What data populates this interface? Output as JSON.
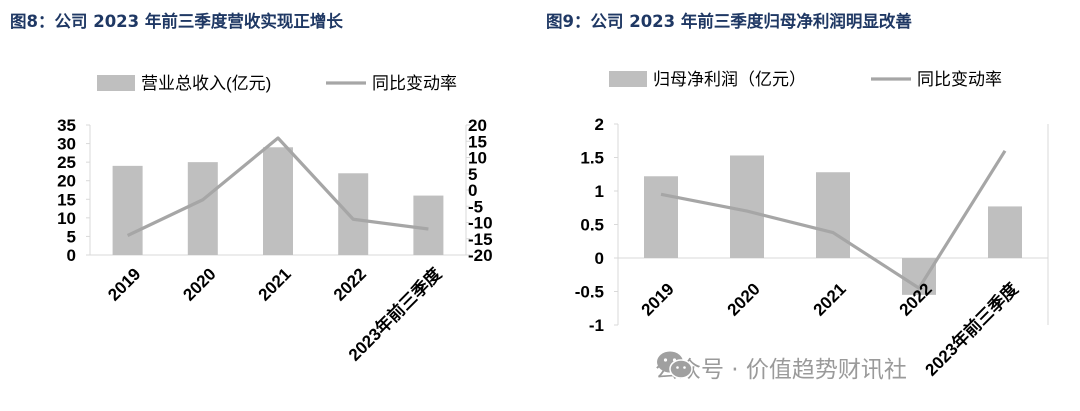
{
  "titles": {
    "left": "图8：公司 2023 年前三季度营收实现正增长",
    "right": "图9：公司 2023 年前三季度归母净利润明显改善"
  },
  "watermark": {
    "text": "公众号 · 价值趋势财讯社",
    "icon": "wechat-icon"
  },
  "colors": {
    "title": "#1f3864",
    "bar": "#bfbfbf",
    "line": "#a6a6a6",
    "axis": "#d9d9d9",
    "text": "#000000"
  },
  "chart_data": [
    {
      "type": "bar",
      "categories": [
        "2019",
        "2020",
        "2021",
        "2022",
        "2023年前三季度"
      ],
      "series": [
        {
          "name": "营业总收入(亿元)",
          "type": "bar",
          "axis": "left",
          "values": [
            24,
            25,
            29,
            22,
            16
          ]
        },
        {
          "name": "同比变动率",
          "type": "line",
          "axis": "right",
          "values": [
            -14,
            -3,
            16,
            -9,
            -12
          ]
        }
      ],
      "ylim_left": [
        0,
        35
      ],
      "yticks_left": [
        "35",
        "30",
        "25",
        "20",
        "15",
        "10",
        "5",
        "0"
      ],
      "ylim_right": [
        -20,
        20
      ],
      "yticks_right": [
        "20",
        "15",
        "10",
        "5",
        "0",
        "-5",
        "-10",
        "-15",
        "-20"
      ],
      "legend_position": "top",
      "grid": false
    },
    {
      "type": "bar",
      "categories": [
        "2019",
        "2020",
        "2021",
        "2022",
        "2023年前三季度"
      ],
      "series": [
        {
          "name": "归母净利润（亿元）",
          "type": "bar",
          "values": [
            1.22,
            1.53,
            1.28,
            -0.55,
            0.77
          ]
        },
        {
          "name": "同比变动率",
          "type": "line",
          "values": [
            0.95,
            0.7,
            0.38,
            -0.45,
            1.6
          ]
        }
      ],
      "ylim": [
        -1,
        2
      ],
      "yticks": [
        "2",
        "1.5",
        "1",
        "0.5",
        "0",
        "-0.5",
        "-1"
      ],
      "legend_position": "top",
      "grid": false
    }
  ]
}
